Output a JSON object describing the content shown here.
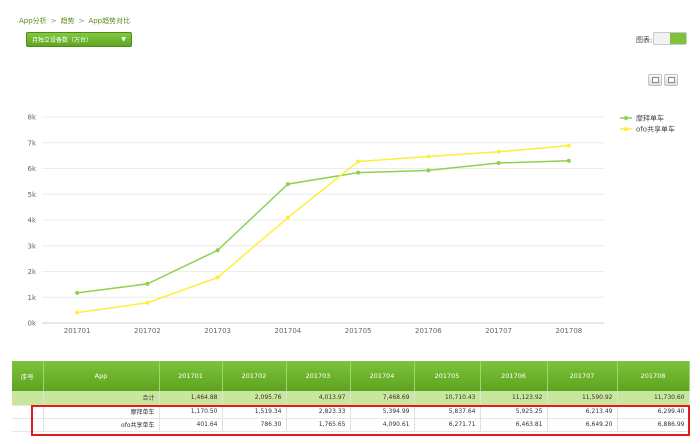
{
  "breadcrumb": {
    "items": [
      "App分析",
      "趋势",
      "App趋势对比"
    ]
  },
  "controls": {
    "metric_select": "月独立设备数（万台）",
    "chart_type_label": "图表:"
  },
  "chart_data": {
    "type": "line",
    "x": [
      "201701",
      "201702",
      "201703",
      "201704",
      "201705",
      "201706",
      "201707",
      "201708"
    ],
    "ytick_labels": [
      "0k",
      "1k",
      "2k",
      "3k",
      "4k",
      "5k",
      "6k",
      "7k",
      "8k"
    ],
    "ylim": [
      0,
      8000
    ],
    "grid": true,
    "legend_position": "right",
    "series": [
      {
        "name": "摩拜单车",
        "color": "#8fd14f",
        "values": [
          1170.5,
          1519.34,
          2823.33,
          5394.99,
          5837.64,
          5925.25,
          6213.49,
          6299.4
        ]
      },
      {
        "name": "ofo共享单车",
        "color": "#ffee3a",
        "values": [
          401.64,
          786.3,
          1765.65,
          4090.61,
          6271.71,
          6463.81,
          6649.2,
          6886.99
        ]
      }
    ]
  },
  "table": {
    "headers": [
      "序号",
      "App",
      "201701",
      "201702",
      "201703",
      "201704",
      "201705",
      "201706",
      "201707",
      "201708"
    ],
    "total_row": {
      "label": "合计",
      "values": [
        "1,464.88",
        "2,095.76",
        "4,013.97",
        "7,468.69",
        "10,710.43",
        "11,123.92",
        "11,590.92",
        "11,730.60"
      ]
    },
    "rows": [
      {
        "name": "摩拜单车",
        "values": [
          "1,170.50",
          "1,519.34",
          "2,823.33",
          "5,394.99",
          "5,837.64",
          "5,925.25",
          "6,213.49",
          "6,299.40"
        ]
      },
      {
        "name": "ofo共享单车",
        "values": [
          "401.64",
          "786.30",
          "1,765.65",
          "4,090.61",
          "6,271.71",
          "6,463.81",
          "6,649.20",
          "6,886.99"
        ]
      }
    ]
  }
}
